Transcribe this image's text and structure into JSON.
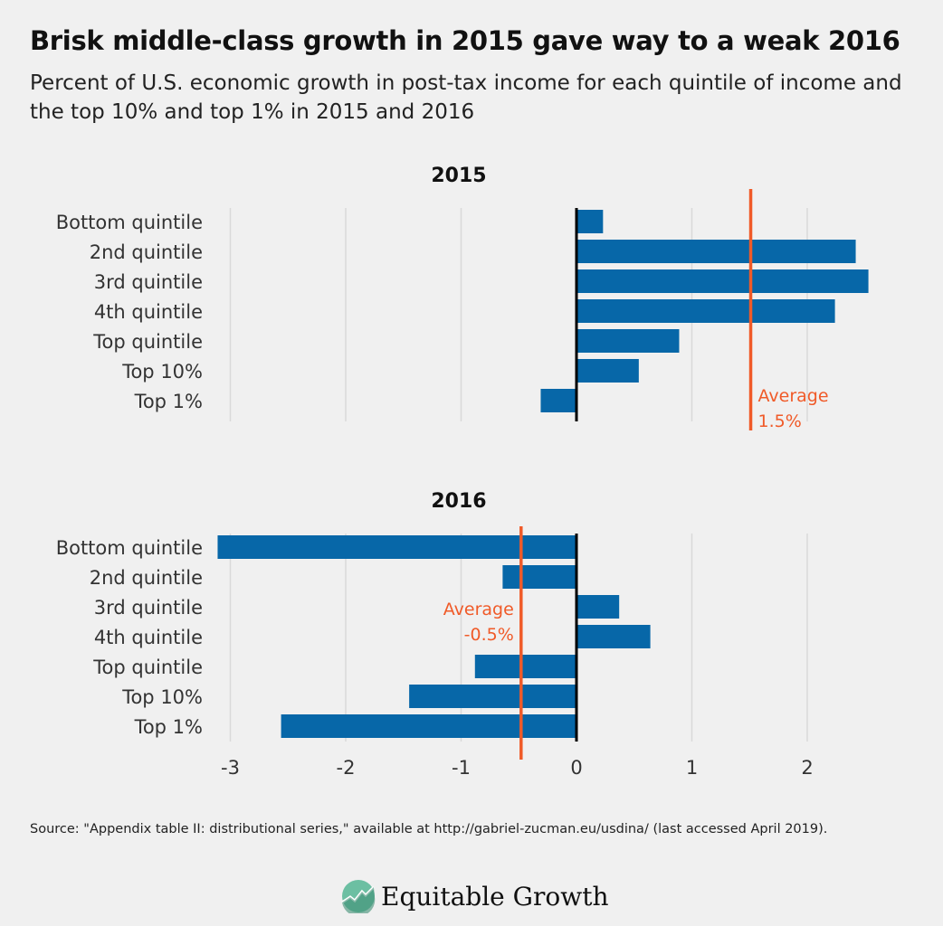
{
  "title": "Brisk middle-class growth in 2015 gave way to a weak 2016",
  "subtitle": "Percent of U.S. economic growth in post-tax income for each quintile of income and the top 10% and top 1% in 2015 and 2016",
  "source": "Source: \"Appendix table II: distributional series,\" available at http://gabriel-zucman.eu/usdina/ (last accessed April 2019).",
  "logo": {
    "text": "Equitable Growth",
    "icon": "rising-line-circle-icon"
  },
  "colors": {
    "bar": "#0767a8",
    "average": "#f05a28",
    "zero_line": "#000000",
    "grid": "#d9d9d9"
  },
  "chart_data": [
    {
      "type": "bar",
      "orientation": "horizontal",
      "title": "2015",
      "categories": [
        "Bottom quintile",
        "2nd quintile",
        "3rd quintile",
        "4th quintile",
        "Top quintile",
        "Top 10%",
        "Top 1%"
      ],
      "values": [
        0.23,
        2.42,
        2.53,
        2.24,
        0.89,
        0.54,
        -0.31
      ],
      "reference_line": {
        "value": 1.51,
        "label": "Average",
        "value_label": "1.5%"
      },
      "xlim": [
        -3.15,
        2.6
      ],
      "grid": true
    },
    {
      "type": "bar",
      "orientation": "horizontal",
      "title": "2016",
      "categories": [
        "Bottom quintile",
        "2nd quintile",
        "3rd quintile",
        "4th quintile",
        "Top quintile",
        "Top 10%",
        "Top 1%"
      ],
      "values": [
        -3.11,
        -0.64,
        0.37,
        0.64,
        -0.88,
        -1.45,
        -2.56
      ],
      "reference_line": {
        "value": -0.48,
        "label": "Average",
        "value_label": "-0.5%"
      },
      "xlim": [
        -3.15,
        2.6
      ],
      "xticks": [
        "-3",
        "-2",
        "-1",
        "0",
        "1",
        "2"
      ],
      "grid": true
    }
  ]
}
